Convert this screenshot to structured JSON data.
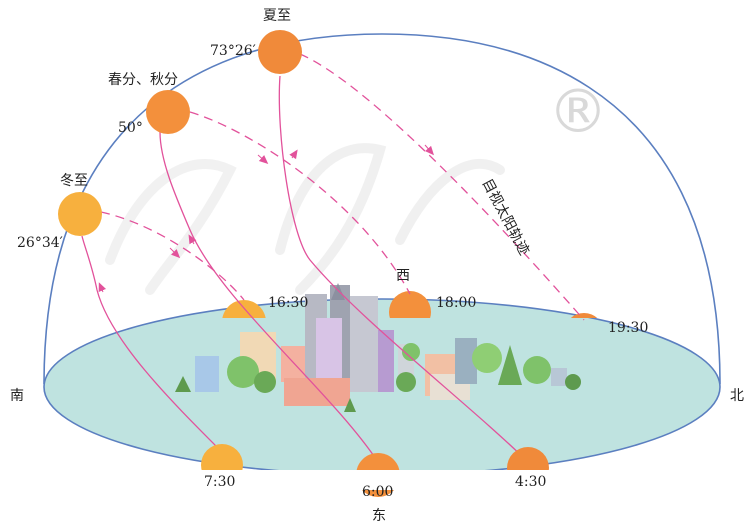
{
  "directions": {
    "south": "南",
    "north": "北",
    "east": "东",
    "west": "西"
  },
  "watermark_mark": "®",
  "paths_label": "目视太阳轨迹",
  "suns": [
    {
      "id": "summer-solstice",
      "name": "夏至",
      "noon_altitude": "73°26′",
      "sunrise": "4:30",
      "sunset": "19:30"
    },
    {
      "id": "equinox",
      "name": "春分、秋分",
      "noon_altitude": "50°",
      "sunrise": "6:00",
      "sunset": "18:00"
    },
    {
      "id": "winter-solstice",
      "name": "冬至",
      "noon_altitude": "26°34′",
      "sunrise": "7:30",
      "sunset": "16:30"
    }
  ],
  "colors": {
    "dome": "#5b7fc0",
    "ground_fill": "#bfe3e0",
    "ground_stroke": "#5b7fc0",
    "sun_summer": "#f08a3a",
    "sun_equinox": "#f3903c",
    "sun_winter": "#f7b03e",
    "path": "#e2529b"
  }
}
